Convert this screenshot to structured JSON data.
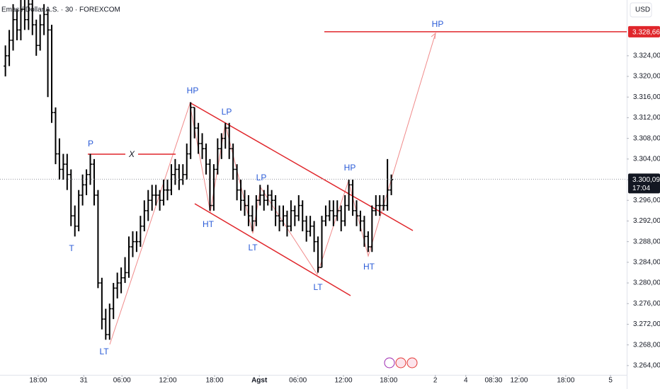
{
  "chart_data": {
    "type": "ohlc",
    "title": "Emas / Dollar A.S. · 30 · FOREXCOM",
    "currency": "USD",
    "color": "#000000",
    "x": [
      0,
      1,
      2,
      3,
      4,
      5,
      6,
      7,
      8,
      9,
      10,
      11,
      12,
      13,
      14,
      15,
      16,
      17,
      18,
      19,
      20,
      21,
      22,
      23,
      24,
      25,
      26,
      27,
      28,
      29,
      30,
      31,
      32,
      33,
      34,
      35,
      36,
      37,
      38,
      39,
      40,
      41,
      42,
      43,
      44,
      45,
      46,
      47,
      48,
      49,
      50,
      51,
      52,
      53,
      54,
      55,
      56,
      57,
      58,
      59,
      60,
      61,
      62,
      63,
      64,
      65,
      66,
      67,
      68,
      69,
      70,
      71,
      72,
      73,
      74,
      75,
      76,
      77,
      78,
      79,
      80,
      81,
      82,
      83,
      84,
      85,
      86,
      87,
      88,
      89,
      90,
      91,
      92,
      93,
      94,
      95,
      96,
      97,
      98,
      99,
      100
    ],
    "open": [
      3.322,
      3.324,
      3.327,
      3.331,
      3.329,
      3.333,
      3.331,
      3.334,
      3.33,
      3.326,
      3.33,
      3.332,
      3.329,
      3.313,
      3.305,
      3.302,
      3.303,
      3.301,
      3.293,
      3.291,
      3.297,
      3.299,
      3.301,
      3.303,
      3.297,
      3.28,
      3.273,
      3.27,
      3.275,
      3.279,
      3.28,
      3.281,
      3.282,
      3.287,
      3.288,
      3.288,
      3.291,
      3.294,
      3.296,
      3.297,
      3.297,
      3.296,
      3.298,
      3.298,
      3.301,
      3.302,
      3.3,
      3.301,
      3.305,
      3.314,
      3.31,
      3.307,
      3.306,
      3.303,
      3.295,
      3.302,
      3.306,
      3.308,
      3.31,
      3.306,
      3.302,
      3.298,
      3.296,
      3.295,
      3.293,
      3.292,
      3.296,
      3.297,
      3.296,
      3.297,
      3.296,
      3.293,
      3.292,
      3.293,
      3.291,
      3.294,
      3.293,
      3.295,
      3.292,
      3.29,
      3.291,
      3.288,
      3.283,
      3.292,
      3.293,
      3.294,
      3.293,
      3.294,
      3.292,
      3.295,
      3.299,
      3.294,
      3.293,
      3.292,
      3.289,
      3.287,
      3.294,
      3.295,
      3.295,
      3.295,
      3.298
    ],
    "high": [
      3.326,
      3.329,
      3.334,
      3.333,
      3.336,
      3.335,
      3.336,
      3.335,
      3.331,
      3.332,
      3.334,
      3.333,
      3.33,
      3.314,
      3.308,
      3.305,
      3.305,
      3.302,
      3.295,
      3.298,
      3.301,
      3.302,
      3.305,
      3.304,
      3.298,
      3.281,
      3.275,
      3.276,
      3.28,
      3.282,
      3.283,
      3.285,
      3.289,
      3.29,
      3.29,
      3.293,
      3.296,
      3.298,
      3.299,
      3.299,
      3.298,
      3.3,
      3.3,
      3.303,
      3.304,
      3.303,
      3.303,
      3.307,
      3.315,
      3.314,
      3.311,
      3.309,
      3.307,
      3.304,
      3.303,
      3.308,
      3.309,
      3.311,
      3.311,
      3.307,
      3.303,
      3.3,
      3.298,
      3.297,
      3.295,
      3.297,
      3.299,
      3.298,
      3.299,
      3.298,
      3.297,
      3.295,
      3.295,
      3.294,
      3.296,
      3.295,
      3.297,
      3.296,
      3.293,
      3.293,
      3.292,
      3.289,
      3.293,
      3.295,
      3.296,
      3.296,
      3.296,
      3.295,
      3.297,
      3.3,
      3.3,
      3.296,
      3.294,
      3.293,
      3.29,
      3.295,
      3.297,
      3.297,
      3.297,
      3.304,
      3.301
    ],
    "low": [
      3.32,
      3.322,
      3.325,
      3.327,
      3.327,
      3.329,
      3.329,
      3.328,
      3.324,
      3.325,
      3.328,
      3.316,
      3.311,
      3.303,
      3.3,
      3.3,
      3.298,
      3.291,
      3.289,
      3.29,
      3.295,
      3.297,
      3.299,
      3.295,
      3.279,
      3.271,
      3.269,
      3.269,
      3.273,
      3.277,
      3.278,
      3.28,
      3.281,
      3.285,
      3.286,
      3.287,
      3.29,
      3.292,
      3.294,
      3.295,
      3.294,
      3.295,
      3.296,
      3.297,
      3.299,
      3.298,
      3.299,
      3.3,
      3.304,
      3.308,
      3.305,
      3.304,
      3.301,
      3.294,
      3.294,
      3.301,
      3.304,
      3.306,
      3.304,
      3.3,
      3.296,
      3.294,
      3.293,
      3.291,
      3.29,
      3.291,
      3.295,
      3.294,
      3.295,
      3.294,
      3.291,
      3.29,
      3.291,
      3.289,
      3.29,
      3.291,
      3.292,
      3.29,
      3.288,
      3.289,
      3.286,
      3.282,
      3.283,
      3.291,
      3.292,
      3.291,
      3.292,
      3.29,
      3.291,
      3.294,
      3.293,
      3.291,
      3.29,
      3.287,
      3.286,
      3.286,
      3.293,
      3.293,
      3.294,
      3.294,
      3.297
    ],
    "close": [
      3.324,
      3.327,
      3.331,
      3.329,
      3.333,
      3.331,
      3.334,
      3.33,
      3.326,
      3.33,
      3.332,
      3.329,
      3.313,
      3.305,
      3.302,
      3.303,
      3.301,
      3.293,
      3.291,
      3.297,
      3.299,
      3.301,
      3.303,
      3.297,
      3.28,
      3.273,
      3.27,
      3.275,
      3.279,
      3.28,
      3.281,
      3.282,
      3.287,
      3.288,
      3.288,
      3.291,
      3.294,
      3.296,
      3.297,
      3.297,
      3.296,
      3.298,
      3.298,
      3.301,
      3.302,
      3.3,
      3.301,
      3.305,
      3.314,
      3.31,
      3.307,
      3.306,
      3.303,
      3.295,
      3.302,
      3.306,
      3.308,
      3.31,
      3.306,
      3.302,
      3.298,
      3.296,
      3.295,
      3.293,
      3.292,
      3.296,
      3.297,
      3.296,
      3.297,
      3.296,
      3.293,
      3.292,
      3.293,
      3.291,
      3.294,
      3.293,
      3.295,
      3.292,
      3.29,
      3.291,
      3.288,
      3.283,
      3.292,
      3.293,
      3.294,
      3.293,
      3.294,
      3.292,
      3.295,
      3.299,
      3.294,
      3.293,
      3.292,
      3.289,
      3.287,
      3.294,
      3.295,
      3.295,
      3.295,
      3.298,
      3.3
    ],
    "xlim": [
      -1.4,
      161
    ],
    "xticks": [
      {
        "value": 8.5,
        "label": "18:00"
      },
      {
        "value": 20.3,
        "label": "31"
      },
      {
        "value": 30.2,
        "label": "06:00"
      },
      {
        "value": 42.1,
        "label": "12:00"
      },
      {
        "value": 54.2,
        "label": "18:00"
      },
      {
        "value": 65.8,
        "label": "Agst"
      },
      {
        "value": 75.8,
        "label": "06:00"
      },
      {
        "value": 87.6,
        "label": "12:00"
      },
      {
        "value": 99.3,
        "label": "18:00"
      },
      {
        "value": 111.4,
        "label": "2"
      },
      {
        "value": 119.3,
        "label": "4"
      },
      {
        "value": 126.5,
        "label": "08:30"
      },
      {
        "value": 133.1,
        "label": "12:00"
      },
      {
        "value": 145.2,
        "label": "18:00"
      },
      {
        "value": 156.8,
        "label": "5"
      }
    ],
    "ylim": [
      3.2622,
      3.3348
    ],
    "yticks": [
      {
        "value": 3.264,
        "label": "3.264,00"
      },
      {
        "value": 3.268,
        "label": "3.268,00"
      },
      {
        "value": 3.272,
        "label": "3.272,00"
      },
      {
        "value": 3.276,
        "label": "3.276,00"
      },
      {
        "value": 3.28,
        "label": "3.280,00"
      },
      {
        "value": 3.284,
        "label": "3.284,00"
      },
      {
        "value": 3.288,
        "label": "3.288,00"
      },
      {
        "value": 3.292,
        "label": "3.292,00"
      },
      {
        "value": 3.296,
        "label": "3.296,00"
      },
      {
        "value": 3.3,
        "label": "3.300,00"
      },
      {
        "value": 3.304,
        "label": "3.304,00"
      },
      {
        "value": 3.308,
        "label": "3.308,00"
      },
      {
        "value": 3.312,
        "label": "3.312,00"
      },
      {
        "value": 3.316,
        "label": "3.316,00"
      },
      {
        "value": 3.32,
        "label": "3.320,00"
      },
      {
        "value": 3.324,
        "label": "3.324,00"
      }
    ],
    "price_line": {
      "value": 3.32866,
      "label": "3.328,66",
      "color": "#e0262b"
    },
    "last_price": {
      "value": 3.30009,
      "label": "3.300,09",
      "countdown": "17:04"
    },
    "annotations": [
      "T",
      "P",
      "X",
      "LT",
      "HP",
      "LP",
      "HT",
      "LP",
      "LT",
      "LT",
      "HP",
      "HT",
      "HP"
    ]
  }
}
